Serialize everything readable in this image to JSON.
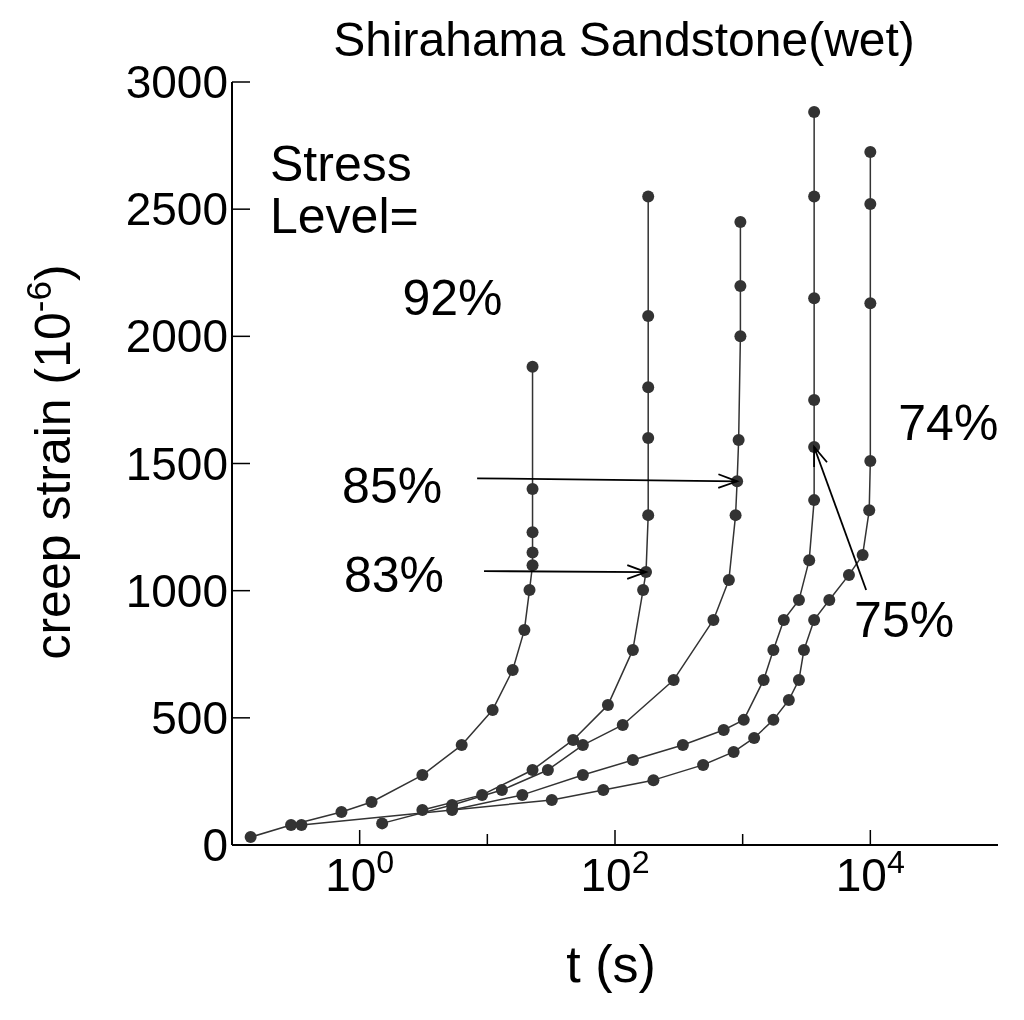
{
  "chart_data": {
    "type": "line",
    "title": "Shirahama Sandstone(wet)",
    "xlabel": "t (s)",
    "ylabel": "creep strain (10$^{-6}$)",
    "log": "x",
    "xlim": [
      0.1,
      100000
    ],
    "ylim": [
      0,
      3000
    ],
    "xticks": [
      {
        "value": 1,
        "label": "10$^{0}$"
      },
      {
        "value": 10,
        "label": null
      },
      {
        "value": 100,
        "label": "10$^{2}$"
      },
      {
        "value": 1000,
        "label": null
      },
      {
        "value": 10000,
        "label": "10$^{4}$"
      }
    ],
    "yticks": [
      0,
      500,
      1000,
      1500,
      2000,
      2500,
      3000
    ],
    "marker": "circle",
    "line_style": "solid",
    "series": [
      {
        "color": "#333333",
        "x": [
          0.14,
          0.29,
          0.72,
          1.24,
          3.1,
          6.3,
          11,
          15.8,
          19.5,
          21.4,
          22.6,
          22.6,
          22.6,
          22.6,
          22.6
        ],
        "values": [
          31,
          79,
          130,
          169,
          275,
          393,
          531,
          688,
          845,
          1003,
          1100,
          1150,
          1230,
          1400,
          1880
        ]
      },
      {
        "color": "#333333",
        "x": [
          3.1,
          9.1,
          22.6,
          47,
          88,
          138,
          166,
          175,
          182,
          182,
          182,
          182,
          182
        ],
        "values": [
          138,
          197,
          295,
          413,
          550,
          767,
          1003,
          1073,
          1297,
          1600,
          1800,
          2080,
          2550
        ]
      },
      {
        "color": "#333333",
        "x": [
          1.5,
          5.3,
          13,
          29.8,
          56,
          115,
          288,
          590,
          780,
          880,
          905,
          930,
          960,
          960,
          960
        ],
        "values": [
          85,
          157,
          216,
          295,
          393,
          472,
          649,
          885,
          1042,
          1297,
          1430,
          1592,
          2000,
          2198,
          2450
        ]
      },
      {
        "color": "#333333",
        "x": [
          5.3,
          18.8,
          56,
          138,
          340,
          710,
          1020,
          1460,
          1740,
          2100,
          2760,
          3320,
          3630,
          3630,
          3630,
          3630,
          3630,
          3630
        ],
        "values": [
          138,
          197,
          275,
          334,
          393,
          452,
          492,
          649,
          767,
          885,
          963,
          1120,
          1356,
          1565,
          1750,
          2150,
          2550,
          2882
        ]
      },
      {
        "color": "#333333",
        "x": [
          0.35,
          32,
          81,
          200,
          490,
          850,
          1230,
          1740,
          2300,
          2760,
          3020,
          3630,
          4770,
          6800,
          8700,
          9800,
          10000,
          10000,
          10000,
          10000
        ],
        "values": [
          79,
          177,
          216,
          255,
          315,
          366,
          421,
          492,
          570,
          649,
          767,
          885,
          963,
          1062,
          1140,
          1316,
          1510,
          2130,
          2520,
          2725
        ]
      }
    ],
    "annotations": [
      "Stress Level=",
      {
        "text": "92%",
        "x": 22.6,
        "y": 1880
      },
      {
        "text": "85%",
        "x": 905,
        "y": 1430
      },
      {
        "text": "83%",
        "x": 175,
        "y": 1073
      },
      {
        "text": "75%",
        "x": 3630,
        "y": 1565
      },
      {
        "text": "74%",
        "x": 10000,
        "y": 1510
      }
    ]
  }
}
